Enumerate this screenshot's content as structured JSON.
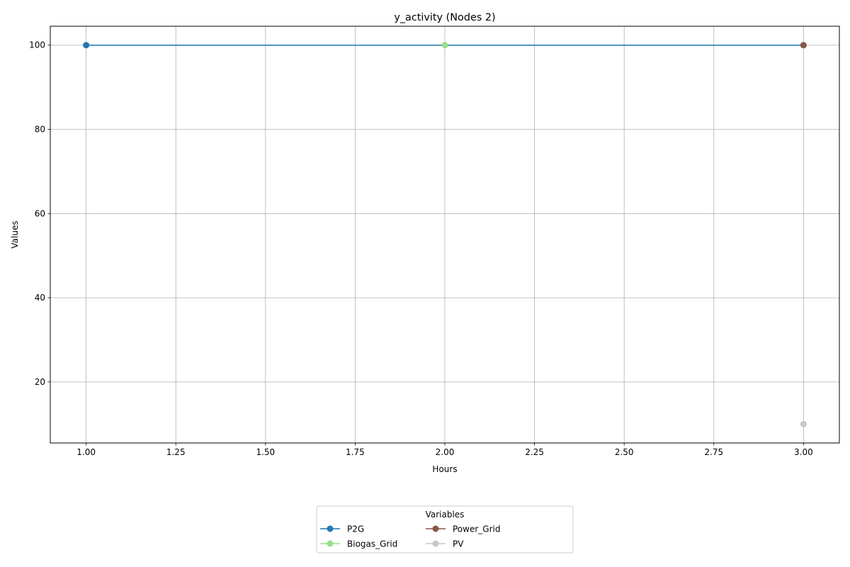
{
  "chart_data": {
    "type": "line",
    "title": "y_activity (Nodes 2)",
    "xlabel": "Hours",
    "ylabel": "Values",
    "xlim": [
      0.9,
      3.1
    ],
    "ylim": [
      5.5,
      104.5
    ],
    "x_ticks": [
      "1.00",
      "1.25",
      "1.50",
      "1.75",
      "2.00",
      "2.25",
      "2.50",
      "2.75",
      "3.00"
    ],
    "x_tick_values": [
      1.0,
      1.25,
      1.5,
      1.75,
      2.0,
      2.25,
      2.5,
      2.75,
      3.0
    ],
    "y_ticks": [
      "20",
      "40",
      "60",
      "80",
      "100"
    ],
    "y_tick_values": [
      20,
      40,
      60,
      80,
      100
    ],
    "grid": true,
    "legend": {
      "title": "Variables",
      "placement": "bottom-center",
      "columns": 3
    },
    "series": [
      {
        "name": "P2G",
        "color": "#1f77b4",
        "x": [
          1,
          3
        ],
        "y": [
          100,
          100
        ]
      },
      {
        "name": "Biogas_Grid",
        "color": "#98df8a",
        "x": [
          2
        ],
        "y": [
          100
        ]
      },
      {
        "name": "Power_Grid",
        "color": "#8c564b",
        "x": [
          3
        ],
        "y": [
          100
        ]
      },
      {
        "name": "PV",
        "color": "#c7c7c7",
        "x": [
          3
        ],
        "y": [
          10
        ]
      }
    ]
  }
}
